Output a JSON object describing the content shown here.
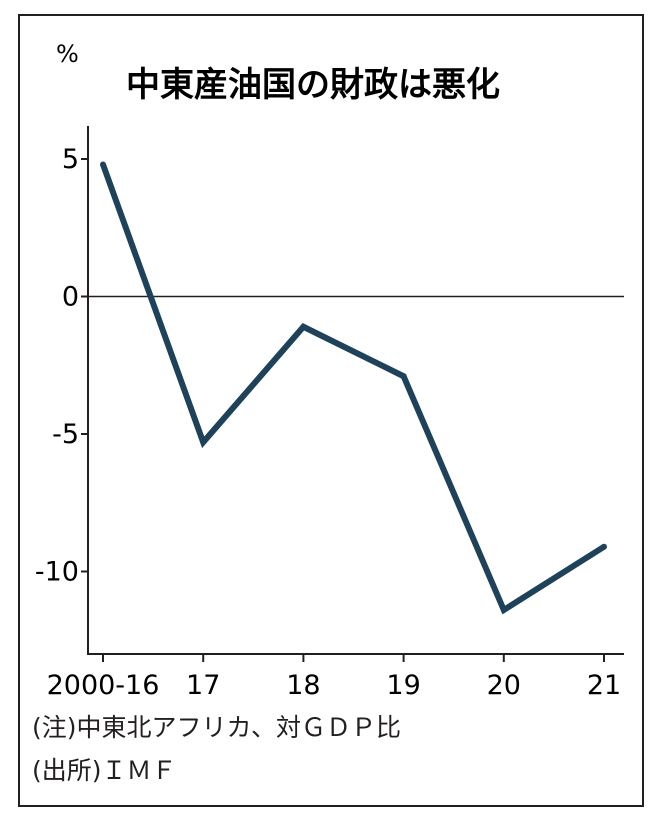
{
  "chart_data": {
    "type": "line",
    "title": "中東産油国の財政は悪化",
    "ylabel": "%",
    "xlabel": "",
    "categories": [
      "2000-16",
      "17",
      "18",
      "19",
      "20",
      "21"
    ],
    "series": [
      {
        "values": [
          4.8,
          -5.3,
          -1.1,
          -2.9,
          -11.4,
          -9.1
        ]
      }
    ],
    "ylim": [
      -13,
      6.2
    ],
    "yticks": [
      5,
      0,
      -5,
      -10
    ],
    "ytick_labels": [
      "5",
      "0",
      "-5",
      "-10"
    ],
    "zero_line": true,
    "grid": false,
    "line_color": "#1e4259"
  },
  "notes": [
    "(注)中東北アフリカ、対ＧＤＰ比",
    "(出所)ＩＭＦ"
  ]
}
